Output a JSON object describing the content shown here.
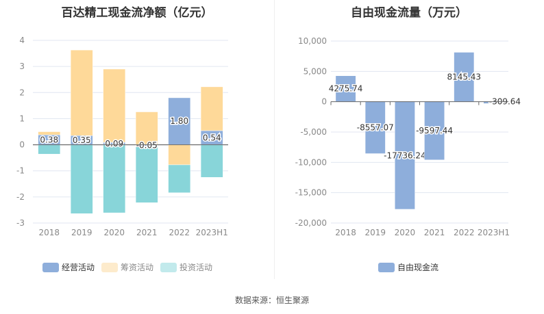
{
  "footer": {
    "source": "数据来源：恒生聚源"
  },
  "chart_data": [
    {
      "type": "bar",
      "stacked": true,
      "title": "百达精工现金流净额（亿元）",
      "categories": [
        "2018",
        "2019",
        "2020",
        "2021",
        "2022",
        "2023H1"
      ],
      "ylim": [
        -3,
        4
      ],
      "yticks": [
        -3,
        -2,
        -1,
        0,
        1,
        2,
        3,
        4
      ],
      "grid": true,
      "legend_position": "bottom",
      "series": [
        {
          "name": "经营活动",
          "color": "#8eaedb",
          "values": [
            0.38,
            0.35,
            0.09,
            -0.05,
            1.8,
            0.54
          ],
          "labels": [
            "0.38",
            "0.35",
            "0.09",
            "-0.05",
            "1.80",
            "0.54"
          ]
        },
        {
          "name": "筹资活动",
          "color": "#fed999",
          "legend_color": "#fdebcc",
          "values": [
            0.12,
            3.28,
            2.81,
            1.26,
            -0.77,
            1.68
          ]
        },
        {
          "name": "投资活动",
          "color": "#88d5d9",
          "legend_color": "#c2eaec",
          "values": [
            -0.36,
            -2.64,
            -2.61,
            -2.17,
            -1.07,
            -1.25
          ]
        }
      ]
    },
    {
      "type": "bar",
      "title": "自由现金流量（万元）",
      "categories": [
        "2018",
        "2019",
        "2020",
        "2021",
        "2022",
        "2023H1"
      ],
      "ylim": [
        -20000,
        10000
      ],
      "yticks": [
        -20000,
        -15000,
        -10000,
        -5000,
        0,
        5000,
        10000
      ],
      "ytick_labels": [
        "-20,000",
        "-15,000",
        "-10,000",
        "-5,000",
        "0",
        "5,000",
        "10,000"
      ],
      "grid": true,
      "legend_position": "bottom",
      "series": [
        {
          "name": "自由现金流",
          "color": "#8eaedb",
          "values": [
            4275.74,
            -8557.07,
            -17736.24,
            -9597.44,
            8145.43,
            -309.64
          ],
          "labels": [
            "4275.74",
            "-8557.07",
            "-17736.24",
            "-9597.44",
            "8145.43",
            "-309.64"
          ]
        }
      ]
    }
  ]
}
